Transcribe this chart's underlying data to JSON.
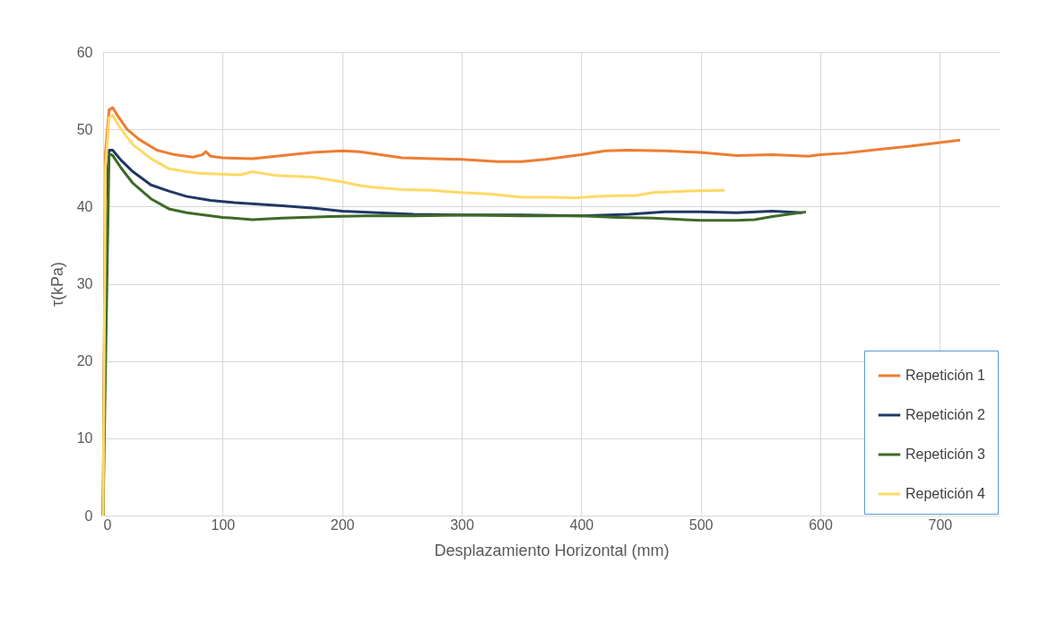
{
  "chart_data": {
    "type": "line",
    "xlabel": "Desplazamiento Horizontal (mm)",
    "ylabel": "τ(kPa)",
    "xlim": [
      0,
      750
    ],
    "xticks": [
      0,
      100,
      200,
      300,
      400,
      500,
      600,
      700
    ],
    "ylim": [
      0,
      60
    ],
    "yticks": [
      0,
      10,
      20,
      30,
      40,
      50,
      60
    ],
    "grid": true,
    "legend": "bottom right",
    "marker": "none",
    "line_style": "solid",
    "series": [
      {
        "name": "Repetición 1",
        "color": "#ed7d31",
        "x": [
          0,
          2,
          5,
          8,
          12,
          20,
          30,
          45,
          60,
          75,
          83,
          86,
          90,
          100,
          125,
          150,
          175,
          200,
          215,
          250,
          300,
          330,
          350,
          370,
          400,
          420,
          440,
          470,
          500,
          530,
          560,
          590,
          600,
          620,
          650,
          680,
          717
        ],
        "values": [
          0,
          47,
          52.5,
          52.8,
          51.8,
          50,
          48.7,
          47.3,
          46.7,
          46.4,
          46.7,
          47.1,
          46.5,
          46.3,
          46.2,
          46.6,
          47,
          47.2,
          47.1,
          46.3,
          46.1,
          45.8,
          45.8,
          46.1,
          46.7,
          47.2,
          47.3,
          47.2,
          47,
          46.6,
          46.7,
          46.5,
          46.7,
          46.9,
          47.4,
          47.9,
          48.6
        ]
      },
      {
        "name": "Repetición 2",
        "color": "#203864",
        "x": [
          0,
          2,
          5,
          8,
          15,
          25,
          40,
          55,
          70,
          90,
          110,
          130,
          150,
          175,
          200,
          230,
          260,
          300,
          350,
          400,
          440,
          470,
          500,
          530,
          560,
          585
        ],
        "values": [
          0,
          40,
          47.3,
          47.3,
          46,
          44.5,
          42.8,
          42,
          41.3,
          40.8,
          40.5,
          40.3,
          40.1,
          39.8,
          39.4,
          39.2,
          39,
          38.9,
          38.9,
          38.8,
          39,
          39.3,
          39.3,
          39.2,
          39.4,
          39.2
        ]
      },
      {
        "name": "Repetición 3",
        "color": "#3d6b27",
        "x": [
          0,
          5,
          8,
          15,
          25,
          40,
          55,
          70,
          100,
          125,
          150,
          190,
          220,
          260,
          300,
          350,
          400,
          430,
          460,
          500,
          530,
          545,
          560,
          588
        ],
        "values": [
          0,
          46.8,
          46.6,
          45,
          43,
          41,
          39.7,
          39.2,
          38.6,
          38.3,
          38.5,
          38.7,
          38.8,
          38.8,
          38.9,
          38.8,
          38.8,
          38.6,
          38.5,
          38.2,
          38.2,
          38.3,
          38.7,
          39.3
        ]
      },
      {
        "name": "Repetición 4",
        "color": "#ffd966",
        "x": [
          0,
          2,
          5,
          8,
          15,
          25,
          40,
          55,
          70,
          80,
          100,
          115,
          125,
          145,
          175,
          200,
          215,
          225,
          250,
          275,
          300,
          325,
          350,
          375,
          395,
          410,
          430,
          445,
          460,
          490,
          520
        ],
        "values": [
          0,
          45,
          51.5,
          51.8,
          50,
          48,
          46.2,
          44.9,
          44.5,
          44.3,
          44.2,
          44.1,
          44.5,
          44,
          43.8,
          43.2,
          42.7,
          42.5,
          42.2,
          42.1,
          41.8,
          41.6,
          41.2,
          41.2,
          41.1,
          41.3,
          41.4,
          41.4,
          41.8,
          42,
          42.1
        ]
      }
    ]
  }
}
